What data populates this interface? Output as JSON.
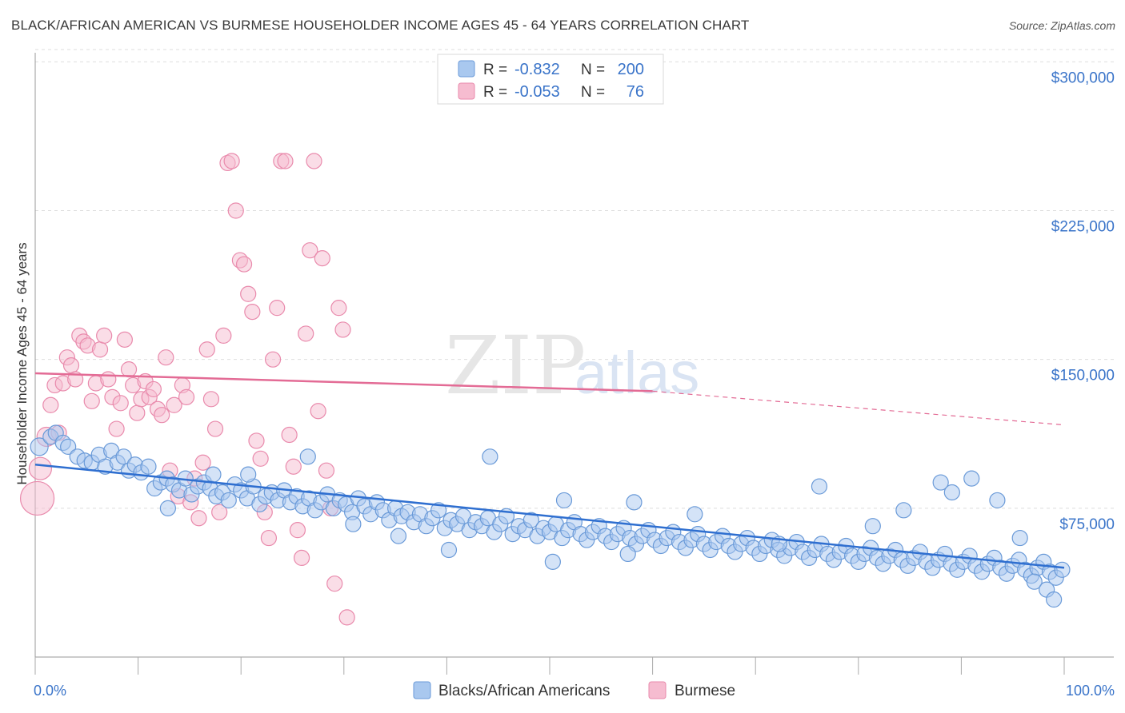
{
  "header": {
    "title": "BLACK/AFRICAN AMERICAN VS BURMESE HOUSEHOLDER INCOME AGES 45 - 64 YEARS CORRELATION CHART",
    "source": "Source: ZipAtlas.com"
  },
  "watermark": {
    "zip": "ZIP",
    "atlas": "atlas"
  },
  "legend_top": {
    "rows": [
      {
        "r_label": "R =",
        "r_value": "-0.832",
        "n_label": "N =",
        "n_value": "200"
      },
      {
        "r_label": "R =",
        "r_value": "-0.053",
        "n_label": "N =",
        "n_value": "76"
      }
    ]
  },
  "legend_bottom": [
    "Blacks/African Americans",
    "Burmese"
  ],
  "colors": {
    "blue_fill": "#a9c8ef",
    "blue_stroke": "#6a9ad8",
    "blue_line": "#2f6fd0",
    "pink_fill": "#f6bcd0",
    "pink_stroke": "#e98aac",
    "pink_line": "#e36b95",
    "value_text": "#3a74c9",
    "grid": "#dddddd"
  },
  "chart_data": {
    "type": "scatter",
    "title": "BLACK/AFRICAN AMERICAN VS BURMESE HOUSEHOLDER INCOME AGES 45 - 64 YEARS CORRELATION CHART",
    "ylabel": "Householder Income Ages 45 - 64 years",
    "xlabel": "",
    "x_ticks": [
      "0.0%",
      "100.0%"
    ],
    "y_ticks": [
      "$75,000",
      "$150,000",
      "$225,000",
      "$300,000"
    ],
    "xlim": [
      0,
      100
    ],
    "ylim": [
      0,
      307000
    ],
    "grid": true,
    "series": [
      {
        "name": "Blacks/African Americans",
        "r": -0.832,
        "n": 200,
        "trend": {
          "x0": 0,
          "y0": 97000,
          "x1": 100,
          "y1": 45000
        },
        "points": [
          [
            0.4,
            106000
          ],
          [
            1.5,
            111000
          ],
          [
            2.0,
            113000
          ],
          [
            2.7,
            108000
          ],
          [
            3.2,
            106000
          ],
          [
            4.1,
            101000
          ],
          [
            4.8,
            99000
          ],
          [
            5.5,
            98000
          ],
          [
            6.2,
            102000
          ],
          [
            6.8,
            96000
          ],
          [
            7.4,
            104000
          ],
          [
            8.0,
            98000
          ],
          [
            8.6,
            101000
          ],
          [
            9.1,
            94000
          ],
          [
            9.7,
            97000
          ],
          [
            10.3,
            93000
          ],
          [
            11.0,
            96000
          ],
          [
            11.6,
            85000
          ],
          [
            12.2,
            88000
          ],
          [
            12.8,
            90000
          ],
          [
            13.4,
            87000
          ],
          [
            14.0,
            84000
          ],
          [
            14.6,
            90000
          ],
          [
            15.2,
            82000
          ],
          [
            15.8,
            86000
          ],
          [
            16.4,
            88000
          ],
          [
            17.0,
            85000
          ],
          [
            17.6,
            81000
          ],
          [
            18.2,
            83000
          ],
          [
            18.8,
            79000
          ],
          [
            19.4,
            87000
          ],
          [
            20.0,
            84000
          ],
          [
            20.6,
            80000
          ],
          [
            21.2,
            86000
          ],
          [
            21.8,
            77000
          ],
          [
            22.4,
            81000
          ],
          [
            23.0,
            83000
          ],
          [
            23.6,
            79000
          ],
          [
            24.2,
            84000
          ],
          [
            24.8,
            78000
          ],
          [
            25.4,
            81000
          ],
          [
            26.0,
            76000
          ],
          [
            26.6,
            80000
          ],
          [
            27.2,
            74000
          ],
          [
            27.8,
            78000
          ],
          [
            28.4,
            82000
          ],
          [
            29.0,
            75000
          ],
          [
            29.6,
            79000
          ],
          [
            30.2,
            77000
          ],
          [
            30.8,
            73000
          ],
          [
            31.4,
            80000
          ],
          [
            32.0,
            76000
          ],
          [
            32.6,
            72000
          ],
          [
            33.2,
            78000
          ],
          [
            33.8,
            74000
          ],
          [
            34.4,
            69000
          ],
          [
            35.0,
            75000
          ],
          [
            35.6,
            71000
          ],
          [
            36.2,
            73000
          ],
          [
            36.8,
            68000
          ],
          [
            37.4,
            72000
          ],
          [
            38.0,
            66000
          ],
          [
            38.6,
            70000
          ],
          [
            39.2,
            74000
          ],
          [
            39.8,
            65000
          ],
          [
            40.4,
            69000
          ],
          [
            41.0,
            67000
          ],
          [
            41.6,
            71000
          ],
          [
            42.2,
            64000
          ],
          [
            42.8,
            68000
          ],
          [
            43.4,
            66000
          ],
          [
            44.0,
            70000
          ],
          [
            44.6,
            63000
          ],
          [
            45.2,
            67000
          ],
          [
            45.8,
            71000
          ],
          [
            46.4,
            62000
          ],
          [
            47.0,
            66000
          ],
          [
            47.6,
            64000
          ],
          [
            48.2,
            69000
          ],
          [
            48.8,
            61000
          ],
          [
            49.4,
            65000
          ],
          [
            50.0,
            63000
          ],
          [
            50.6,
            67000
          ],
          [
            51.2,
            60000
          ],
          [
            51.8,
            64000
          ],
          [
            52.4,
            68000
          ],
          [
            53.0,
            62000
          ],
          [
            53.6,
            59000
          ],
          [
            54.2,
            63000
          ],
          [
            54.8,
            66000
          ],
          [
            55.4,
            61000
          ],
          [
            56.0,
            58000
          ],
          [
            56.6,
            62000
          ],
          [
            57.2,
            65000
          ],
          [
            57.8,
            60000
          ],
          [
            58.4,
            57000
          ],
          [
            59.0,
            61000
          ],
          [
            59.6,
            64000
          ],
          [
            60.2,
            59000
          ],
          [
            60.8,
            56000
          ],
          [
            61.4,
            60000
          ],
          [
            62.0,
            63000
          ],
          [
            62.6,
            58000
          ],
          [
            63.2,
            55000
          ],
          [
            63.8,
            59000
          ],
          [
            64.4,
            62000
          ],
          [
            65.0,
            57000
          ],
          [
            65.6,
            54000
          ],
          [
            66.2,
            58000
          ],
          [
            66.8,
            61000
          ],
          [
            67.4,
            56000
          ],
          [
            68.0,
            53000
          ],
          [
            68.6,
            57000
          ],
          [
            69.2,
            60000
          ],
          [
            69.8,
            55000
          ],
          [
            70.4,
            52000
          ],
          [
            71.0,
            56000
          ],
          [
            71.6,
            59000
          ],
          [
            72.2,
            54000
          ],
          [
            72.8,
            51000
          ],
          [
            73.4,
            55000
          ],
          [
            74.0,
            58000
          ],
          [
            74.6,
            53000
          ],
          [
            75.2,
            50000
          ],
          [
            75.8,
            54000
          ],
          [
            76.4,
            57000
          ],
          [
            77.0,
            52000
          ],
          [
            77.6,
            49000
          ],
          [
            78.2,
            53000
          ],
          [
            78.8,
            56000
          ],
          [
            79.4,
            51000
          ],
          [
            80.0,
            48000
          ],
          [
            80.6,
            52000
          ],
          [
            81.2,
            55000
          ],
          [
            81.8,
            50000
          ],
          [
            82.4,
            47000
          ],
          [
            83.0,
            51000
          ],
          [
            83.6,
            54000
          ],
          [
            84.2,
            49000
          ],
          [
            84.8,
            46000
          ],
          [
            85.4,
            50000
          ],
          [
            86.0,
            53000
          ],
          [
            86.6,
            48000
          ],
          [
            87.2,
            45000
          ],
          [
            87.8,
            49000
          ],
          [
            88.4,
            52000
          ],
          [
            89.0,
            47000
          ],
          [
            89.6,
            44000
          ],
          [
            90.2,
            48000
          ],
          [
            90.8,
            51000
          ],
          [
            91.4,
            46000
          ],
          [
            92.0,
            43000
          ],
          [
            92.6,
            47000
          ],
          [
            93.2,
            50000
          ],
          [
            93.8,
            45000
          ],
          [
            94.4,
            42000
          ],
          [
            95.0,
            46000
          ],
          [
            95.6,
            49000
          ],
          [
            96.2,
            44000
          ],
          [
            96.8,
            41000
          ],
          [
            97.4,
            45000
          ],
          [
            98.0,
            48000
          ],
          [
            98.6,
            43000
          ],
          [
            99.2,
            40000
          ],
          [
            99.8,
            44000
          ],
          [
            12.9,
            75000
          ],
          [
            17.3,
            92000
          ],
          [
            26.5,
            101000
          ],
          [
            44.2,
            101000
          ],
          [
            51.4,
            79000
          ],
          [
            58.2,
            78000
          ],
          [
            76.2,
            86000
          ],
          [
            88.0,
            88000
          ],
          [
            89.1,
            83000
          ],
          [
            91.0,
            90000
          ],
          [
            93.5,
            79000
          ],
          [
            95.7,
            60000
          ],
          [
            97.1,
            38000
          ],
          [
            98.3,
            34000
          ],
          [
            99.0,
            29000
          ],
          [
            84.4,
            74000
          ],
          [
            81.4,
            66000
          ],
          [
            72.3,
            57000
          ],
          [
            64.1,
            72000
          ],
          [
            57.6,
            52000
          ],
          [
            50.3,
            48000
          ],
          [
            40.2,
            54000
          ],
          [
            35.3,
            61000
          ],
          [
            30.9,
            67000
          ],
          [
            20.7,
            92000
          ]
        ]
      },
      {
        "name": "Burmese",
        "r": -0.053,
        "n": 76,
        "trend": {
          "x0": 0,
          "y0": 143000,
          "x1": 60,
          "y1": 134000,
          "x2": 100,
          "y2": 117000
        },
        "points": [
          [
            0.2,
            80000
          ],
          [
            0.5,
            95000
          ],
          [
            1.1,
            111000
          ],
          [
            1.5,
            127000
          ],
          [
            1.9,
            137000
          ],
          [
            2.3,
            113000
          ],
          [
            2.7,
            138000
          ],
          [
            3.1,
            151000
          ],
          [
            3.5,
            147000
          ],
          [
            3.9,
            140000
          ],
          [
            4.3,
            162000
          ],
          [
            4.7,
            159000
          ],
          [
            5.1,
            157000
          ],
          [
            5.5,
            129000
          ],
          [
            5.9,
            138000
          ],
          [
            6.3,
            155000
          ],
          [
            6.7,
            162000
          ],
          [
            7.1,
            140000
          ],
          [
            7.5,
            131000
          ],
          [
            7.9,
            115000
          ],
          [
            8.3,
            128000
          ],
          [
            8.7,
            160000
          ],
          [
            9.1,
            145000
          ],
          [
            9.5,
            137000
          ],
          [
            9.9,
            123000
          ],
          [
            10.3,
            130000
          ],
          [
            10.7,
            139000
          ],
          [
            11.1,
            131000
          ],
          [
            11.5,
            135000
          ],
          [
            11.9,
            125000
          ],
          [
            12.3,
            122000
          ],
          [
            12.7,
            151000
          ],
          [
            13.1,
            94000
          ],
          [
            13.5,
            127000
          ],
          [
            13.9,
            81000
          ],
          [
            14.3,
            137000
          ],
          [
            14.7,
            131000
          ],
          [
            15.1,
            78000
          ],
          [
            15.5,
            90000
          ],
          [
            15.9,
            70000
          ],
          [
            16.3,
            98000
          ],
          [
            16.7,
            155000
          ],
          [
            17.1,
            130000
          ],
          [
            17.5,
            115000
          ],
          [
            17.9,
            73000
          ],
          [
            18.3,
            162000
          ],
          [
            18.7,
            249000
          ],
          [
            19.1,
            250000
          ],
          [
            19.5,
            225000
          ],
          [
            19.9,
            200000
          ],
          [
            20.3,
            198000
          ],
          [
            20.7,
            183000
          ],
          [
            21.1,
            174000
          ],
          [
            21.5,
            109000
          ],
          [
            21.9,
            100000
          ],
          [
            22.3,
            73000
          ],
          [
            22.7,
            60000
          ],
          [
            23.1,
            150000
          ],
          [
            23.5,
            176000
          ],
          [
            23.9,
            250000
          ],
          [
            24.3,
            250000
          ],
          [
            24.7,
            112000
          ],
          [
            25.1,
            96000
          ],
          [
            25.5,
            64000
          ],
          [
            25.9,
            50000
          ],
          [
            26.3,
            163000
          ],
          [
            26.7,
            205000
          ],
          [
            27.1,
            250000
          ],
          [
            27.5,
            124000
          ],
          [
            27.9,
            201000
          ],
          [
            28.3,
            94000
          ],
          [
            28.7,
            75000
          ],
          [
            29.1,
            37000
          ],
          [
            29.5,
            176000
          ],
          [
            29.9,
            165000
          ],
          [
            30.3,
            20000
          ]
        ]
      }
    ]
  }
}
